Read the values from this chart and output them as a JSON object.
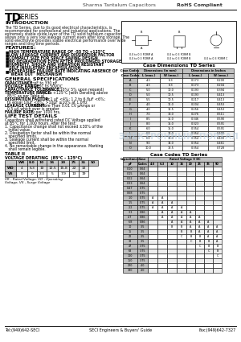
{
  "title_company": "Sharma Tantalum Capacitors",
  "title_rohs": "RoHS Compliant",
  "footer_left": "Tel:(949)642-SECI",
  "footer_center": "SECI Engineers & Buyers' Guide",
  "footer_right": "Fax:(949)642-7327",
  "intro_title": "INTRODUCTION",
  "intro_text": "The TD Series, due to its good electrical characteristics, is\nrecommended for professional and industrial applications. The\nextremely stable oxide layer of the TD solid tantalum capacitor\nallows only a very low leakage current even after long storage. The\nsolid electrolyte provides stable electrical performance over wide\nranges and long time periods.",
  "features_title": "FEATURES:",
  "features": [
    "HIGH TEMPERATURE RANGE OF -55 TO +125°C",
    "LOW LEAKAGE CURRENT AND DISSIPATION FACTOR",
    "COMPACT SIZE FOR SPACE SAVING DESIGN",
    "NO DEGRADATION EVEN AFTER PROLONGED STORAGE",
    "HUMIDITY, SHOCK AND VIBRATION RESISTANT\nSELF INSULATING ENCAPSULATION",
    "DECREASING FAILURE RATE INDICATING ABSENCE OF\n\"WEAR OUT\" MECHANISM"
  ],
  "gen_spec_title": "GENERAL SPECIFICATIONS",
  "gen_spec_lines": [
    [
      "bold",
      "CAPACITANCE:",
      " 0.1 pF to 330 pF"
    ],
    [
      "bold",
      "VOLTAGE RANGE:",
      " 4.0VDC to 50VDC"
    ],
    [
      "bold",
      "CAPACITANCE TOLERANCE:",
      " ±20%, ±10%( 5% upon request)"
    ],
    [
      "bold",
      "TEMPERATURE RANGE:",
      " -55°C to +125°C (with Derating above"
    ],
    [
      "plain",
      "  85°C as per Table a)",
      ""
    ],
    [
      "bold",
      "DISSIPATION FACTOR:",
      " 0.1 to 1 μF <4%; 1.2 to 6.8μF <6%;"
    ],
    [
      "plain",
      "  to equal 10μF <8%; >10μF ≥10% at 1.0Hz",
      ""
    ],
    [
      "bold",
      "LEAKAGE CURRENT:",
      " Not More Than 0.01 CV μAmps or"
    ],
    [
      "plain",
      "  0.5 μA which ever is greater",
      ""
    ],
    [
      "bold",
      "FAILURE RATE:",
      " 1% per 1000 hrs."
    ]
  ],
  "life_test_title": "LIFE TEST DETAILS",
  "life_test_lines": [
    "Capacitors shall withstand rated DC Voltage applied",
    "at 85°C for 1,000 hours. After the test:",
    "1. Capacitance change shall not exceed ±30% of the",
    "   initial value.",
    "2. Dissipation factor shall be within the normal",
    "   specified limits.",
    "3. Leakage current shall be within the normal",
    "   specified limit.",
    "4. No remarkable change in the appearance. Marking",
    "   shall remain legible."
  ],
  "table_title": "TABLE II",
  "table_sub": "VOLTAGE DERATING  (85°C - 125°C)",
  "table_headers": [
    "WR",
    "8.0",
    "10",
    "16",
    "20",
    "25",
    "35",
    "50"
  ],
  "table_row1_label": "WO",
  "table_row1": [
    "4",
    "6.3",
    "10",
    "12.5",
    "15.8",
    "22",
    "32"
  ],
  "table_row2_label": "VS",
  "table_row2": [
    "0",
    "0",
    "3.3",
    "5",
    "7.9",
    "13",
    "19"
  ],
  "table_note": "VR - Rated Voltage, VO - Operating\nVoltage, VS - Surge Voltage",
  "case_dim_title": "Case Dimensions TD Series",
  "case_dim_data": [
    [
      "A",
      "4.3",
      "6.3",
      "0.173",
      "0.200"
    ],
    [
      "B",
      "4.3",
      "6.3",
      "0.173",
      "0.204"
    ],
    [
      "C",
      "5.0",
      "10.0",
      "0.193",
      "0.394"
    ],
    [
      "D",
      "5.0",
      "10.5",
      "0.193",
      "0.413"
    ],
    [
      "E",
      "5.5",
      "10.5",
      "0.217",
      "0.413"
    ],
    [
      "F",
      "4.0",
      "11.0",
      "0.204",
      "0.453"
    ],
    [
      "G",
      "4.0",
      "11.5",
      "0.256",
      "0.453"
    ],
    [
      "H",
      "7.0",
      "13.0",
      "0.276",
      "0.511"
    ],
    [
      "I",
      "8.5",
      "15.0",
      "0.346",
      "0.590"
    ],
    [
      "J",
      "8.0",
      "15.0",
      "0.323",
      "0.591"
    ],
    [
      "K",
      "6.0",
      "15.0",
      "0.354",
      "0.591"
    ],
    [
      "L",
      "6.0",
      "14.0",
      "0.354",
      "0.400"
    ],
    [
      "M",
      "6.0",
      "14.0",
      "0.354",
      "0.400"
    ],
    [
      "N",
      "9.0",
      "14.0",
      "0.354",
      "0.461"
    ],
    [
      "O",
      "10.0",
      "18.5",
      "0.354",
      "0.728"
    ]
  ],
  "case_codes_title": "Case Codes TD Series",
  "case_codes_headers1": [
    "Capacitance",
    "Case",
    "Rated Voltage V DC"
  ],
  "case_codes_headers2": [
    "pF",
    "Codes",
    "4.0",
    "6.3",
    "10",
    "16",
    "20",
    "25",
    "35",
    "50"
  ],
  "case_codes_data": [
    [
      "0.10",
      "0.64",
      "",
      "",
      "",
      "",
      "",
      "",
      "",
      ""
    ],
    [
      "0.15",
      "0.64",
      "",
      "",
      "",
      "",
      "",
      "",
      "",
      ""
    ],
    [
      "0.22",
      "0.64",
      "",
      "",
      "",
      "",
      "",
      "",
      "",
      ""
    ],
    [
      "0.33",
      "0.64",
      "",
      "",
      "",
      "",
      "",
      "",
      "",
      ""
    ],
    [
      "0.47",
      "0.75",
      "",
      "",
      "",
      "",
      "",
      "",
      "",
      ""
    ],
    [
      "0.68",
      "0.75",
      "",
      "",
      "",
      "",
      "",
      "",
      "",
      ""
    ],
    [
      "1.0",
      "0.75",
      "A",
      "A",
      "",
      "",
      "",
      "",
      "",
      ""
    ],
    [
      "1.5",
      "0.75",
      "A",
      "A",
      "A",
      "",
      "",
      "",
      "",
      ""
    ],
    [
      "2.2",
      "0.75",
      "A",
      "A",
      "A",
      "A",
      "",
      "",
      "",
      ""
    ],
    [
      "3.3",
      "0.86",
      "",
      "A",
      "A",
      "A",
      "A",
      "",
      "",
      ""
    ],
    [
      "4.7",
      "0.86",
      "",
      "A",
      "A",
      "A",
      "A",
      "A",
      "",
      ""
    ],
    [
      "6.8",
      "0.86",
      "",
      "",
      "A",
      "A",
      "A",
      "A",
      "A",
      ""
    ],
    [
      "10",
      "3.5",
      "",
      "",
      "B",
      "B",
      "A",
      "A",
      "A",
      "A"
    ],
    [
      "15",
      "3.5",
      "",
      "",
      "",
      "B",
      "B",
      "A",
      "A",
      "A"
    ],
    [
      "22",
      "3.5",
      "",
      "",
      "",
      "C",
      "B",
      "B",
      "A",
      "A"
    ],
    [
      "33",
      "3.5",
      "",
      "",
      "",
      "",
      "C",
      "B",
      "B",
      "A"
    ],
    [
      "47",
      "3.75",
      "",
      "",
      "",
      "",
      "",
      "C",
      "B",
      "B"
    ],
    [
      "68",
      "3.75",
      "",
      "",
      "",
      "",
      "",
      "",
      "C",
      "B"
    ],
    [
      "100",
      "3.75",
      "",
      "",
      "",
      "",
      "",
      "",
      "",
      "C"
    ],
    [
      "150",
      "3.75",
      "",
      "",
      "",
      "",
      "",
      "",
      "",
      ""
    ],
    [
      "220",
      "4.0",
      "",
      "",
      "",
      "",
      "",
      "",
      "",
      ""
    ],
    [
      "330",
      "4.0",
      "",
      "",
      "",
      "",
      "",
      "",
      "",
      ""
    ]
  ],
  "watermark_text": "ЭЛЕКТРОННЫЙ  ПОРТАЛ",
  "background": "#ffffff"
}
